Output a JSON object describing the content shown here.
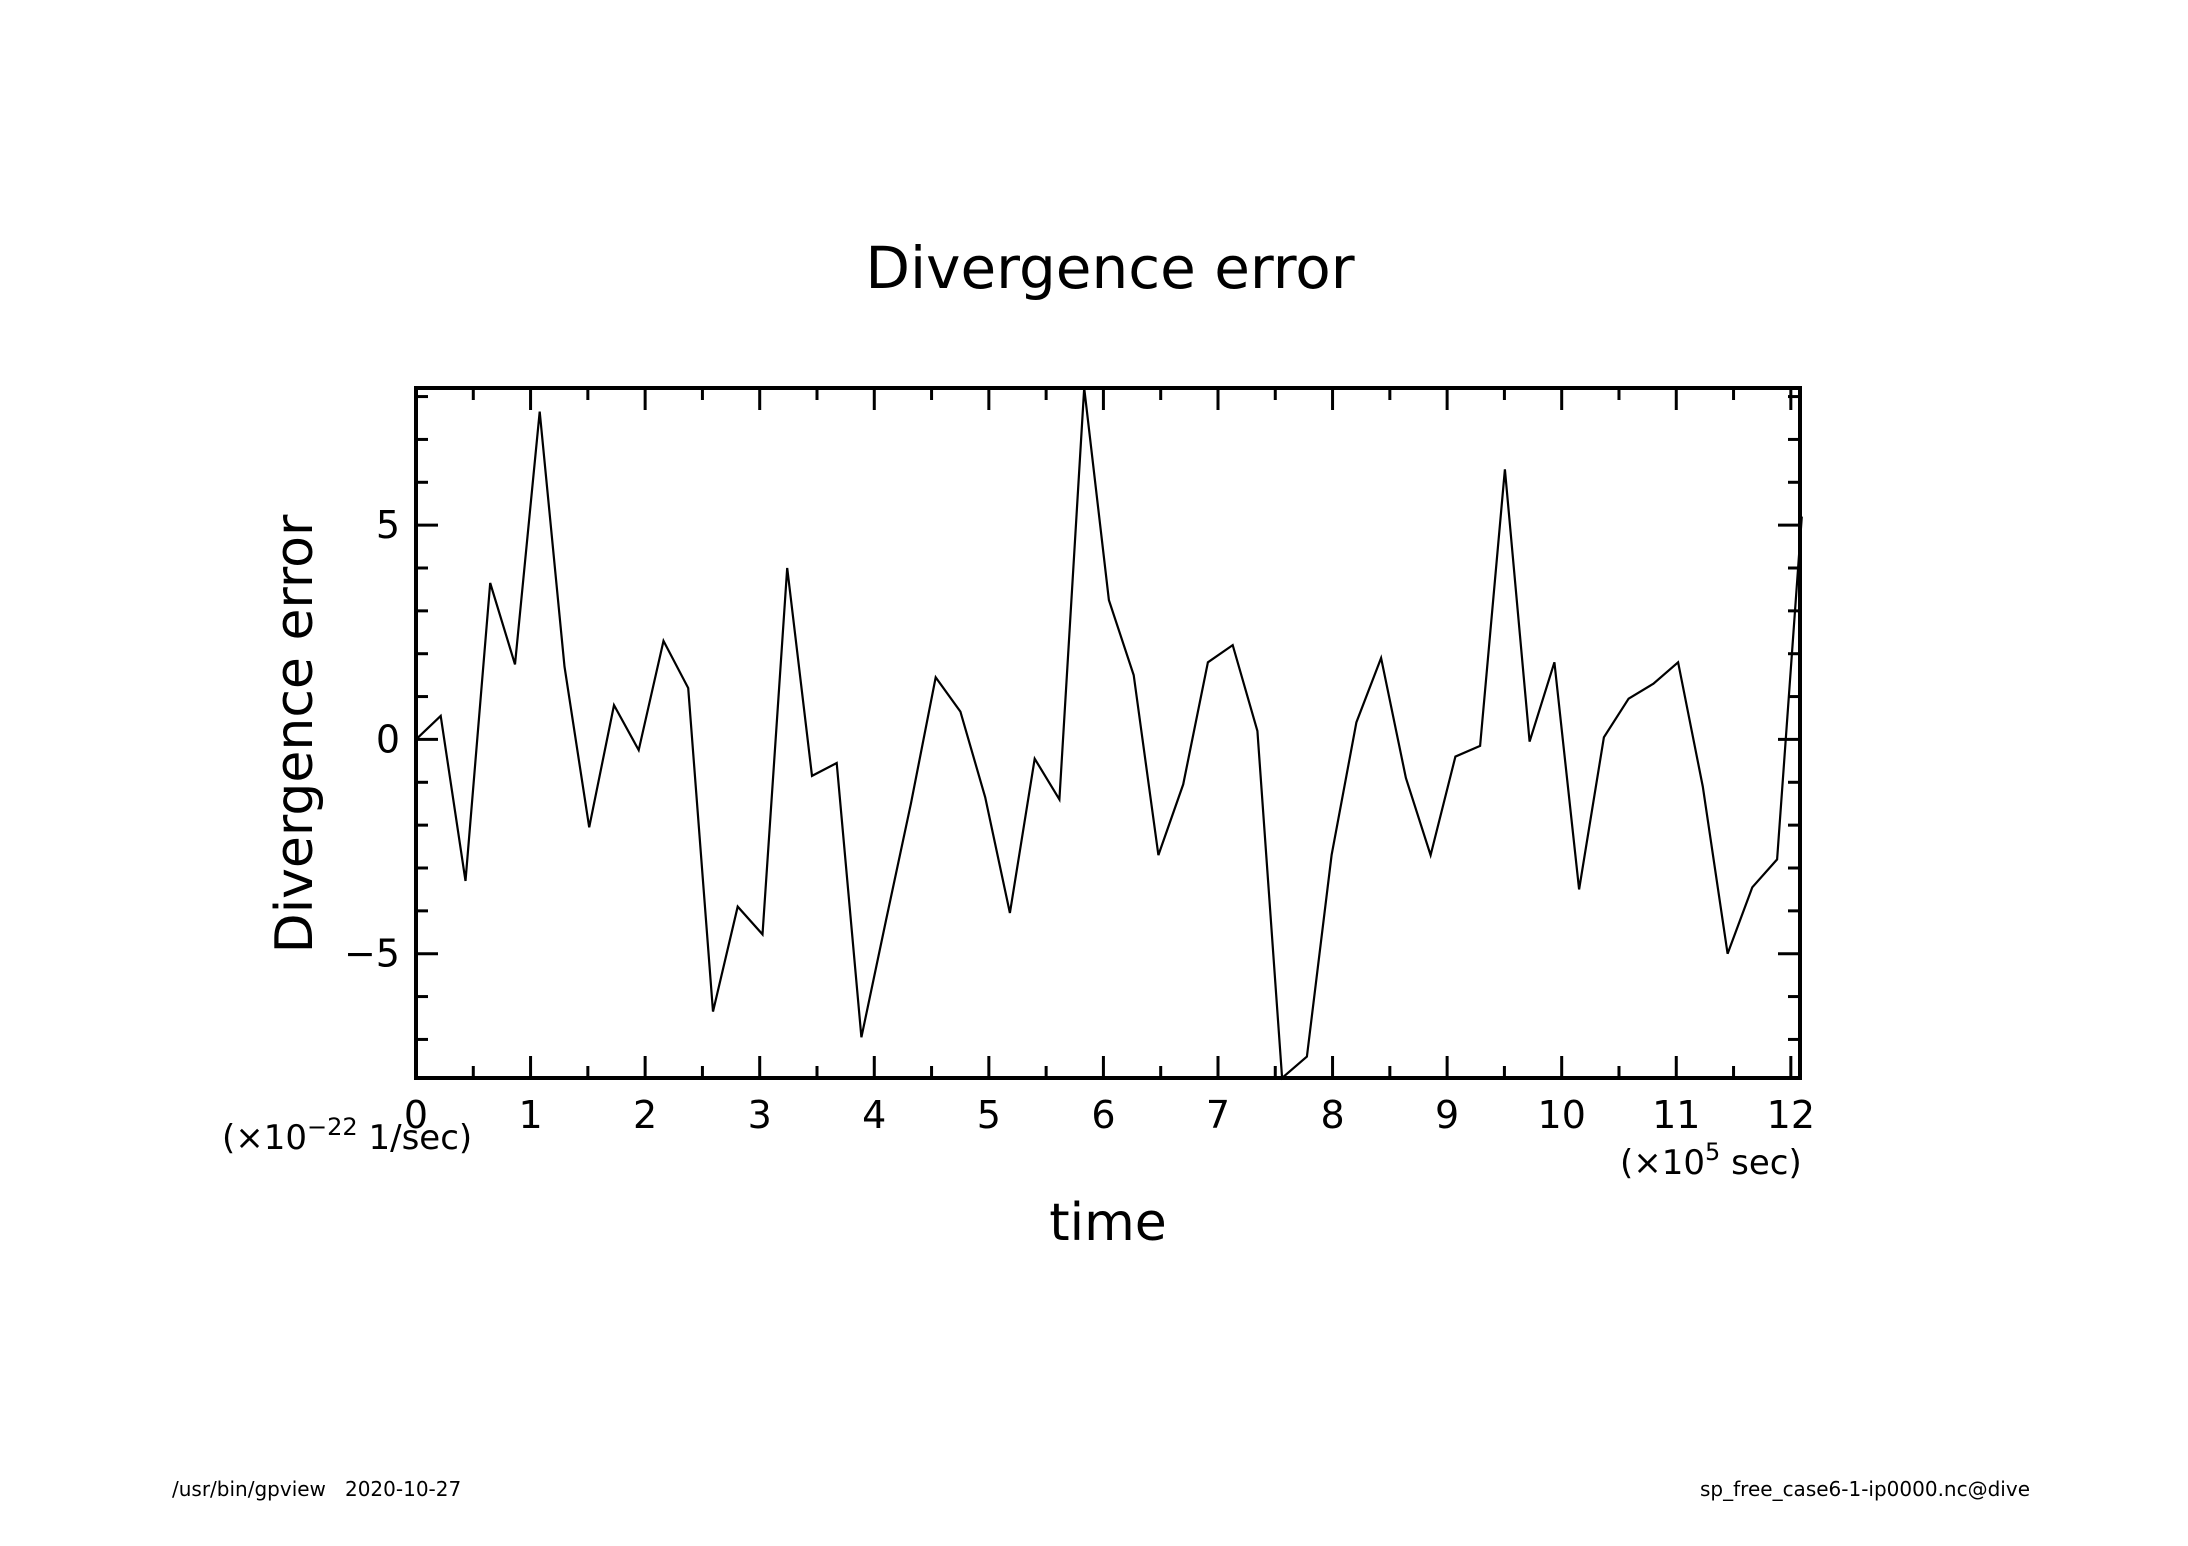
{
  "chart_data": {
    "type": "line",
    "title": "Divergence error",
    "xlabel": "time",
    "ylabel": "Divergence error",
    "x_unit": {
      "prefix": "(×10",
      "exp": "5",
      "suffix": " sec)"
    },
    "y_unit": {
      "prefix": "(×10",
      "exp": "−22",
      "suffix": " 1/sec)"
    },
    "xlim": [
      0,
      12.08
    ],
    "ylim": [
      -7.9,
      8.2
    ],
    "x_ticks": [
      0,
      1,
      2,
      3,
      4,
      5,
      6,
      7,
      8,
      9,
      10,
      11,
      12
    ],
    "x_tick_labels": [
      "0",
      "1",
      "2",
      "3",
      "4",
      "5",
      "6",
      "7",
      "8",
      "9",
      "10",
      "11",
      "12"
    ],
    "y_ticks": [
      -5,
      0,
      5
    ],
    "y_tick_labels": [
      "−5",
      "0",
      "5"
    ],
    "grid": false,
    "series": [
      {
        "x": [
          0,
          0.216,
          0.432,
          0.648,
          0.864,
          1.08,
          1.296,
          1.512,
          1.728,
          1.944,
          2.16,
          2.376,
          2.592,
          2.808,
          3.024,
          3.24,
          3.456,
          3.672,
          3.888,
          4.104,
          4.32,
          4.536,
          4.752,
          4.968,
          5.184,
          5.4,
          5.616,
          5.832,
          6.048,
          6.264,
          6.48,
          6.696,
          6.912,
          7.128,
          7.344,
          7.56,
          7.776,
          7.992,
          8.208,
          8.424,
          8.64,
          8.856,
          9.072,
          9.288,
          9.504,
          9.72,
          9.936,
          10.152,
          10.368,
          10.584,
          10.8,
          11.016,
          11.232,
          11.448,
          11.664,
          11.88,
          12.096
        ],
        "values": [
          0.0,
          0.55,
          -3.3,
          3.65,
          1.75,
          7.65,
          1.7,
          -2.05,
          0.8,
          -0.25,
          2.3,
          1.2,
          -6.35,
          -3.9,
          -4.55,
          4.0,
          -0.85,
          -0.55,
          -6.95,
          -4.2,
          -1.5,
          1.45,
          0.65,
          -1.35,
          -4.05,
          -0.45,
          -1.4,
          8.2,
          3.25,
          1.5,
          -2.7,
          -1.05,
          1.8,
          2.2,
          0.2,
          -7.9,
          -7.4,
          -2.7,
          0.4,
          1.9,
          -0.9,
          -2.7,
          -0.4,
          -0.15,
          6.3,
          -0.05,
          1.8,
          -3.5,
          0.05,
          0.95,
          1.3,
          1.8,
          -1.1,
          -5.0,
          -3.45,
          -2.8,
          5.2
        ]
      }
    ]
  },
  "footer": {
    "left": "/usr/bin/gpview   2020-10-27",
    "right": "sp_free_case6-1-ip0000.nc@dive"
  }
}
